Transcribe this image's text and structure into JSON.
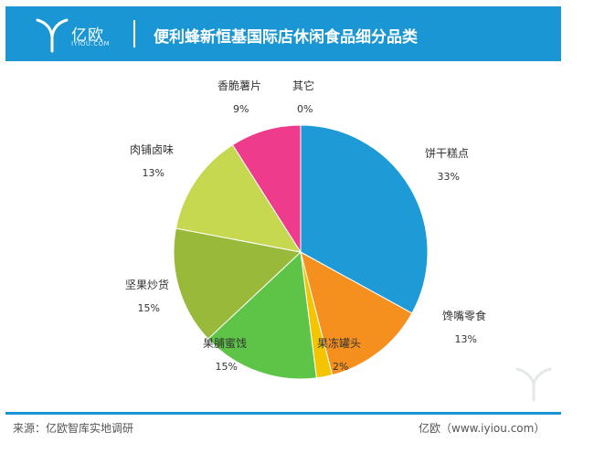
{
  "header": {
    "logo_text": "亿欧",
    "logo_sub": "IYIOU.COM",
    "title": "便利蜂新恒基国际店休闲食品细分品类"
  },
  "chart_data": {
    "type": "pie",
    "title": "便利蜂新恒基国际店休闲食品细分品类",
    "slices": [
      {
        "label": "饼干糕点",
        "value": 33,
        "value_label": "33%",
        "color": "#1e9ad6"
      },
      {
        "label": "馋嘴零食",
        "value": 13,
        "value_label": "13%",
        "color": "#f5901f"
      },
      {
        "label": "果冻罐头",
        "value": 2,
        "value_label": "2%",
        "color": "#f5c400"
      },
      {
        "label": "果脯蜜饯",
        "value": 15,
        "value_label": "15%",
        "color": "#5ec447"
      },
      {
        "label": "坚果炒货",
        "value": 15,
        "value_label": "15%",
        "color": "#98b93a"
      },
      {
        "label": "肉铺卤味",
        "value": 13,
        "value_label": "13%",
        "color": "#c6d84f"
      },
      {
        "label": "香脆薯片",
        "value": 9,
        "value_label": "9%",
        "color": "#ee3b8b"
      },
      {
        "label": "其它",
        "value": 0,
        "value_label": "0%",
        "color": "#999999"
      }
    ]
  },
  "footer": {
    "source": "来源：亿欧智库实地调研",
    "site": "亿欧（www.iyiou.com）"
  }
}
